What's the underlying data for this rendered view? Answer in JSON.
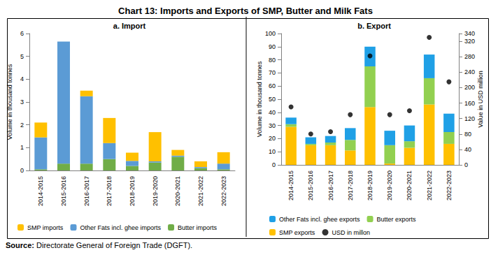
{
  "title": "Chart 13: Imports and Exports of SMP, Butter and Milk Fats",
  "source": "Source: Directorate General of Foreign Trade (DGFT).",
  "chart_data": [
    {
      "type": "bar",
      "title": "a. Import",
      "stacked": true,
      "grid": false,
      "legend": "bottom",
      "ylabel": "Volume in thousand tonnes",
      "categories": [
        "2014-2015",
        "2015-2016",
        "2016-2017",
        "2017-2018",
        "2018-2019",
        "2019-2020",
        "2020-2021",
        "2021-2022",
        "2022-2023"
      ],
      "ylim": [
        0,
        6
      ],
      "yticks": [
        0,
        1,
        2,
        3,
        4,
        5,
        6
      ],
      "series": [
        {
          "name": "SMP imports",
          "color": "#FFC000",
          "values": [
            0.65,
            0,
            0.25,
            1.1,
            0.36,
            1.28,
            0.25,
            0.25,
            0.5
          ]
        },
        {
          "name": "Other Fats incl. ghee imports",
          "color": "#5B9BD5",
          "values": [
            1.4,
            5.35,
            2.95,
            0.7,
            0.22,
            0.05,
            0.05,
            0.05,
            0.25
          ]
        },
        {
          "name": "Butter imports",
          "color": "#70AD47",
          "values": [
            0.05,
            0.3,
            0.3,
            0.5,
            0.2,
            0.35,
            0.6,
            0.1,
            0.05
          ]
        }
      ]
    },
    {
      "type": "bar",
      "title": "b. Export",
      "stacked": true,
      "grid": false,
      "legend": "bottom",
      "ylabel": "Volume in thousand tonnes",
      "y2label": "Value in USD million",
      "categories": [
        "2014-2015",
        "2015-2016",
        "2016-2017",
        "2017-2018",
        "2018-2019",
        "2019-2020",
        "2020-2021",
        "2021-2022",
        "2022-2023"
      ],
      "ylim": [
        0,
        100
      ],
      "yticks": [
        0,
        10,
        20,
        30,
        40,
        50,
        60,
        70,
        80,
        90,
        100
      ],
      "y2lim": [
        0,
        340
      ],
      "y2ticks": [
        0,
        40,
        80,
        120,
        160,
        200,
        240,
        280,
        320
      ],
      "series": [
        {
          "name": "Other Fats incl. ghee exports",
          "color": "#1FA0E6",
          "values": [
            5,
            5,
            5,
            9,
            15,
            11,
            12,
            18,
            14
          ]
        },
        {
          "name": "Butter exports",
          "color": "#92D050",
          "values": [
            2,
            1,
            2,
            8,
            31,
            14,
            5,
            20,
            9
          ]
        },
        {
          "name": "SMP exports",
          "color": "#FFC000",
          "values": [
            29,
            15,
            15,
            11,
            44,
            1,
            13,
            46,
            16
          ]
        },
        {
          "name": "USD in millon",
          "type": "scatter",
          "marker": "circle",
          "axis": "y2",
          "color": "#000000",
          "values": [
            150,
            80,
            86,
            130,
            282,
            130,
            140,
            330,
            215
          ]
        }
      ]
    }
  ]
}
